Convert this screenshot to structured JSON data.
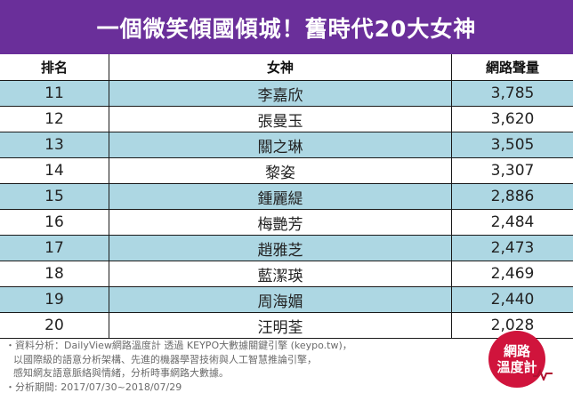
{
  "title": "一個微笑傾國傾城！舊時代20大女神",
  "columns": [
    "排名",
    "女神",
    "網路聲量"
  ],
  "rows": [
    {
      "rank": "11",
      "name": "李嘉欣",
      "volume": "3,785"
    },
    {
      "rank": "12",
      "name": "張曼玉",
      "volume": "3,620"
    },
    {
      "rank": "13",
      "name": "關之琳",
      "volume": "3,505"
    },
    {
      "rank": "14",
      "name": "黎姿",
      "volume": "3,307"
    },
    {
      "rank": "15",
      "name": "鍾麗緹",
      "volume": "2,886"
    },
    {
      "rank": "16",
      "name": "梅艷芳",
      "volume": "2,484"
    },
    {
      "rank": "17",
      "name": "趙雅芝",
      "volume": "2,473"
    },
    {
      "rank": "18",
      "name": "藍潔瑛",
      "volume": "2,469"
    },
    {
      "rank": "19",
      "name": "周海媚",
      "volume": "2,440"
    },
    {
      "rank": "20",
      "name": "汪明荃",
      "volume": "2,028"
    }
  ],
  "footer": {
    "line1": "・資料分析：DailyView網路溫度計 透過 KEYPO大數據關鍵引擎 (keypo.tw)，",
    "line2": "以國際級的語意分析架構、先進的機器學習技術與人工智慧推論引擎，",
    "line3": "感知網友語意脈絡與情緒，分析時事網路大數據。",
    "line4": "・分析期間: 2017/07/30~2018/07/29"
  },
  "logo": {
    "line1": "網路",
    "line2": "溫度計"
  },
  "colors": {
    "banner": "#6a2f9a",
    "stripe": "#add7e3",
    "logo": "#d0143c"
  }
}
